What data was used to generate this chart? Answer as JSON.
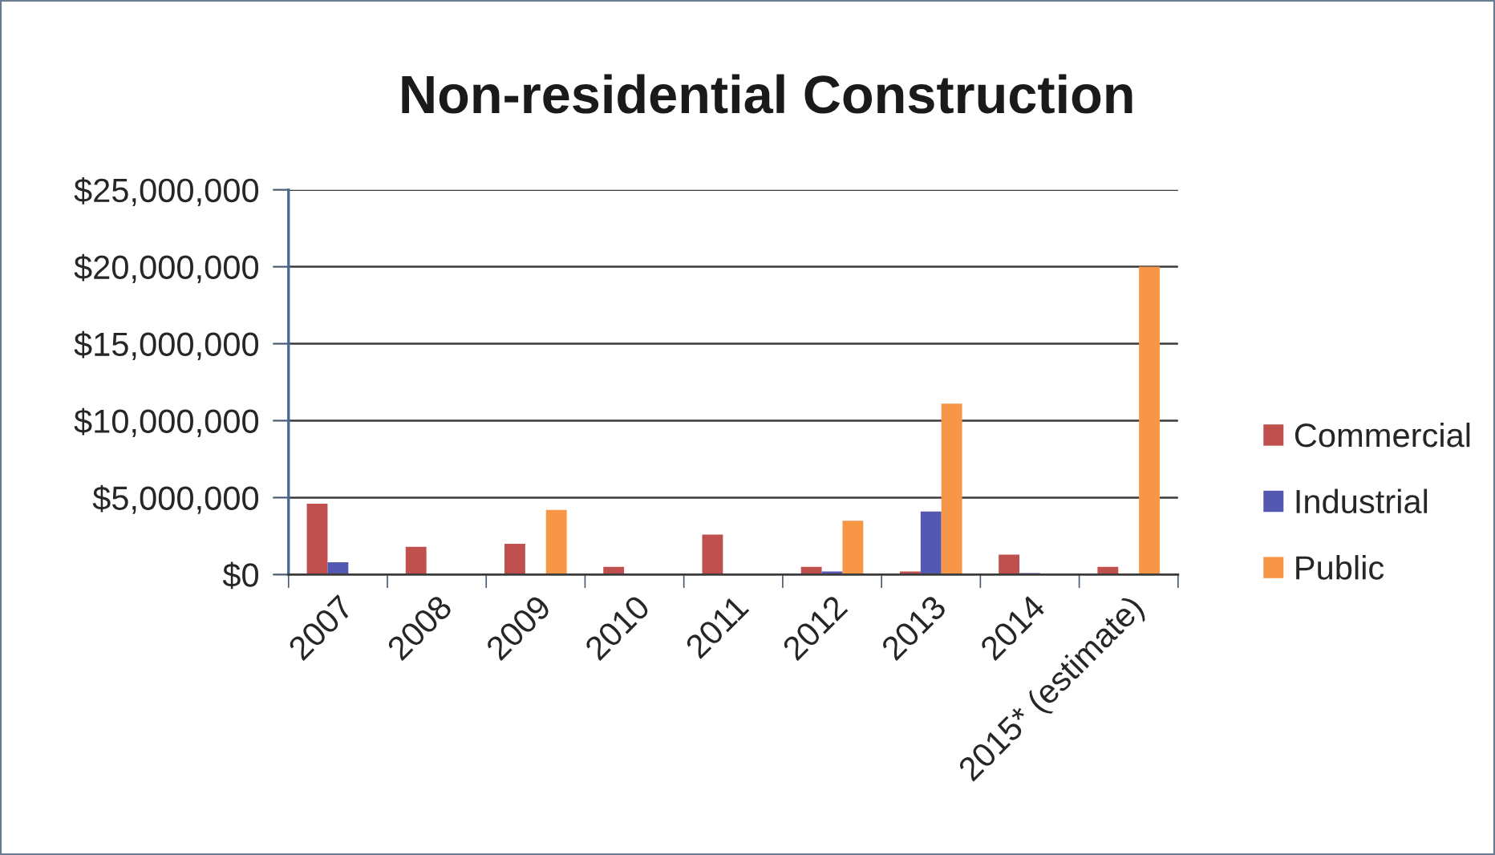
{
  "chart_data": {
    "type": "bar",
    "title": "Non-residential Construction",
    "categories": [
      "2007",
      "2008",
      "2009",
      "2010",
      "2011",
      "2012",
      "2013",
      "2014",
      "2015* (estimate)"
    ],
    "series": [
      {
        "name": "Commercial",
        "color": "#c0504d",
        "values": [
          4600000,
          1800000,
          2000000,
          500000,
          2600000,
          500000,
          200000,
          1300000,
          500000
        ]
      },
      {
        "name": "Industrial",
        "color": "#5458b0",
        "values": [
          800000,
          0,
          0,
          0,
          0,
          200000,
          4100000,
          100000,
          0
        ]
      },
      {
        "name": "Public",
        "color": "#f79646",
        "values": [
          0,
          0,
          4200000,
          0,
          0,
          3500000,
          11100000,
          0,
          20000000
        ]
      }
    ],
    "ylim": [
      0,
      25000000
    ],
    "yticks": [
      {
        "value": 0,
        "label": "$0"
      },
      {
        "value": 5000000,
        "label": "$5,000,000"
      },
      {
        "value": 10000000,
        "label": "$10,000,000"
      },
      {
        "value": 15000000,
        "label": "$15,000,000"
      },
      {
        "value": 20000000,
        "label": "$20,000,000"
      },
      {
        "value": 25000000,
        "label": "$25,000,000"
      }
    ],
    "grid": "y",
    "legend": "right"
  }
}
